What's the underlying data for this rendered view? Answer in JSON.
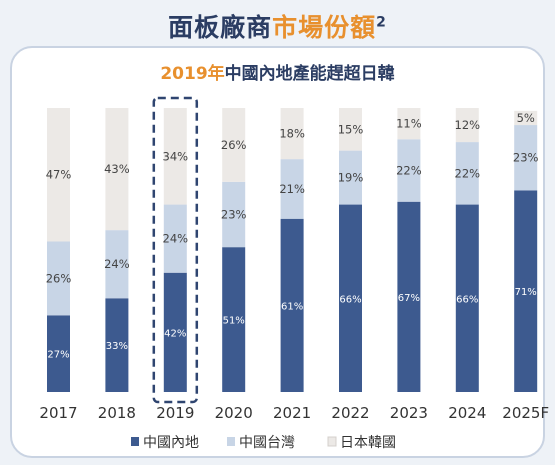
{
  "header": {
    "title_main": "面板廠商",
    "title_accent": "市場份額",
    "title_sup": "2",
    "chart_title_year": "2019年",
    "chart_title_rest": "中國內地產能趕超日韓"
  },
  "colors": {
    "mainland": "#3d5a8f",
    "taiwan": "#c8d5e6",
    "japan_korea": "#ece9e6",
    "highlight_border": "#2f4570",
    "accent": "#e8902e"
  },
  "chart_data": {
    "type": "bar",
    "stacked": true,
    "percent": true,
    "categories": [
      "2017",
      "2018",
      "2019",
      "2020",
      "2021",
      "2022",
      "2023",
      "2024",
      "2025F"
    ],
    "series": [
      {
        "name": "中國內地",
        "values": [
          27,
          33,
          42,
          51,
          61,
          66,
          67,
          66,
          71
        ],
        "labels": [
          "27%",
          "33%",
          "42%",
          "51%",
          "61%",
          "66%",
          "67%",
          "66%",
          "71%"
        ]
      },
      {
        "name": "中國台灣",
        "values": [
          26,
          24,
          24,
          23,
          21,
          19,
          22,
          22,
          23
        ],
        "labels": [
          "26%",
          "24%",
          "24%",
          "23%",
          "21%",
          "19%",
          "22%",
          "22%",
          "23%"
        ]
      },
      {
        "name": "日本韓國",
        "values": [
          47,
          43,
          34,
          26,
          18,
          15,
          11,
          12,
          5
        ],
        "labels": [
          "47%",
          "43%",
          "34%",
          "26%",
          "18%",
          "15%",
          "11%",
          "12%",
          "5%"
        ]
      }
    ],
    "highlight_category": "2019",
    "ylim": [
      0,
      100
    ],
    "legend_position": "bottom"
  }
}
